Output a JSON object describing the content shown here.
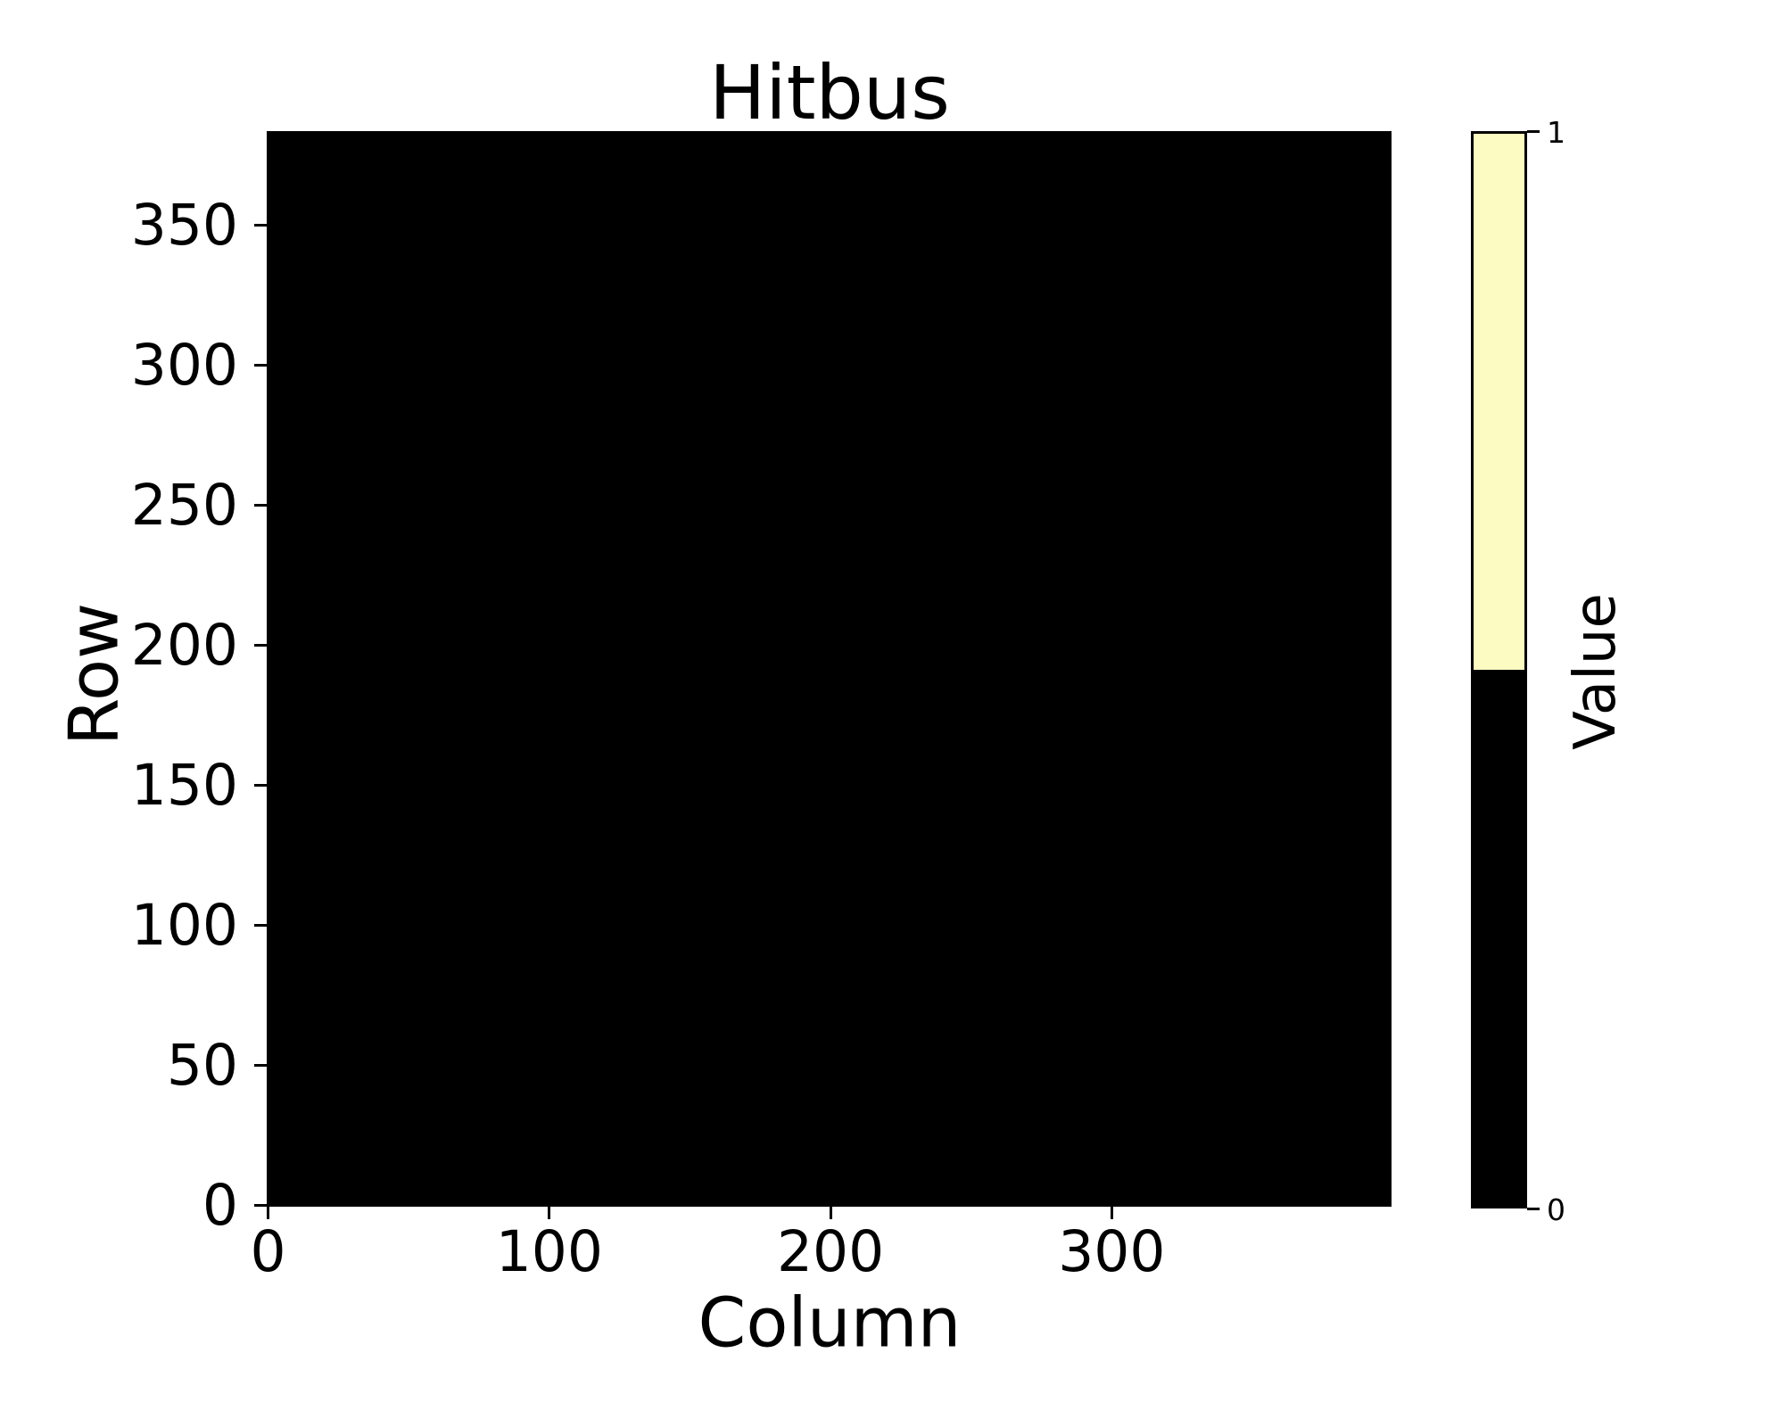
{
  "chart_data": {
    "type": "heatmap",
    "title": "Hitbus",
    "xlabel": "Column",
    "ylabel": "Row",
    "n_columns": 400,
    "n_rows": 384,
    "x_range": [
      -0.5,
      399.5
    ],
    "y_range": [
      -0.5,
      383.5
    ],
    "xtick_values": [
      0,
      100,
      200,
      300
    ],
    "xtick_labels": [
      "0",
      "100",
      "200",
      "300"
    ],
    "ytick_values": [
      0,
      50,
      100,
      150,
      200,
      250,
      300,
      350
    ],
    "ytick_labels": [
      "0",
      "50",
      "100",
      "150",
      "200",
      "250",
      "300",
      "350"
    ],
    "grid": false,
    "cells": "uniform",
    "uniform_value": 0,
    "colorbar": {
      "label": "Value",
      "tick_values": [
        1,
        0
      ],
      "tick_labels": [
        "1",
        "0"
      ],
      "orientation": "vertical",
      "position": "right"
    }
  },
  "colors": {
    "background": "#ffffff",
    "value_zero": "#000000",
    "value_one": "#FCFCC2",
    "axis": "#000000",
    "text": "#000000"
  }
}
